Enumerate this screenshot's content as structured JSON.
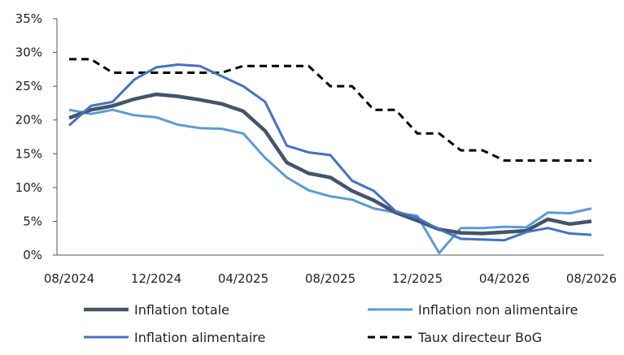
{
  "chart_data": {
    "type": "line",
    "x": [
      "08/2024",
      "09/2024",
      "10/2024",
      "11/2024",
      "12/2024",
      "01/2025",
      "02/2025",
      "03/2025",
      "04/2025",
      "05/2025",
      "06/2025",
      "07/2025",
      "08/2025",
      "09/2025",
      "10/2025",
      "11/2025",
      "12/2025",
      "01/2026",
      "02/2026",
      "03/2026",
      "04/2026",
      "05/2026",
      "06/2026",
      "07/2026",
      "08/2026"
    ],
    "x_tick_labels": [
      "08/2024",
      "12/2024",
      "04/2025",
      "08/2025",
      "12/2025",
      "04/2026",
      "08/2026"
    ],
    "y_tick_labels": [
      "0%",
      "5%",
      "10%",
      "15%",
      "20%",
      "25%",
      "30%",
      "35%"
    ],
    "ylim": [
      0,
      35
    ],
    "grid": false,
    "legend_position": "bottom",
    "series": [
      {
        "name": "Inflation totale",
        "color": "#44546a",
        "style": "solid-thick",
        "values": [
          20.3,
          21.5,
          22.1,
          23.1,
          23.8,
          23.5,
          23.0,
          22.4,
          21.3,
          18.4,
          13.7,
          12.1,
          11.5,
          9.5,
          8.1,
          6.3,
          5.1,
          3.8,
          3.3,
          3.2,
          3.4,
          3.6,
          5.3,
          4.6,
          5.0
        ]
      },
      {
        "name": "Inflation non alimentaire",
        "color": "#5b9bd5",
        "style": "solid",
        "values": [
          21.5,
          20.9,
          21.5,
          20.7,
          20.4,
          19.3,
          18.8,
          18.7,
          18.0,
          14.4,
          11.5,
          9.6,
          8.7,
          8.2,
          6.9,
          6.3,
          5.8,
          0.3,
          4.0,
          4.0,
          4.2,
          4.1,
          6.3,
          6.2,
          6.9
        ]
      },
      {
        "name": "Inflation alimentaire",
        "color": "#4472c4",
        "style": "solid",
        "values": [
          19.2,
          22.1,
          22.7,
          26.0,
          27.8,
          28.2,
          28.0,
          26.5,
          25.0,
          22.7,
          16.2,
          15.2,
          14.8,
          11.0,
          9.5,
          6.5,
          5.5,
          3.8,
          2.4,
          2.3,
          2.2,
          3.4,
          4.0,
          3.2,
          3.0
        ]
      },
      {
        "name": "Taux directeur BoG",
        "color": "#000000",
        "style": "dashed",
        "values": [
          29.0,
          29.0,
          27.0,
          27.0,
          27.0,
          27.0,
          27.0,
          27.0,
          28.0,
          28.0,
          28.0,
          28.0,
          25.0,
          25.0,
          21.5,
          21.5,
          18.0,
          18.0,
          15.5,
          15.5,
          14.0,
          14.0,
          14.0,
          14.0,
          14.0
        ]
      }
    ]
  }
}
